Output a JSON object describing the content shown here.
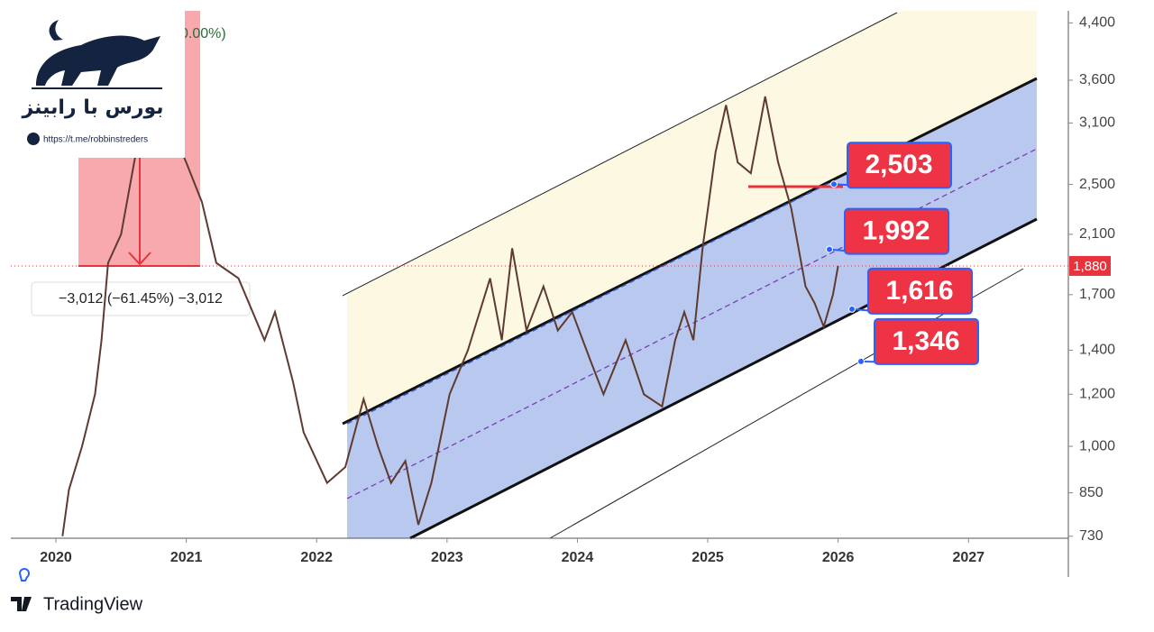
{
  "chart_data": {
    "type": "line",
    "x": [
      2020.05,
      2020.1,
      2020.2,
      2020.3,
      2020.35,
      2020.4,
      2020.5,
      2020.6,
      2020.7,
      2020.9,
      2021.0,
      2021.12,
      2021.23,
      2021.4,
      2021.6,
      2021.68,
      2021.82,
      2021.9,
      2022.08,
      2022.22,
      2022.36,
      2022.47,
      2022.57,
      2022.68,
      2022.78,
      2022.88,
      2023.02,
      2023.16,
      2023.33,
      2023.42,
      2023.5,
      2023.61,
      2023.74,
      2023.85,
      2023.96,
      2024.1,
      2024.2,
      2024.37,
      2024.51,
      2024.65,
      2024.75,
      2024.82,
      2024.89,
      2024.96,
      2025.06,
      2025.14,
      2025.23,
      2025.33,
      2025.44,
      2025.54,
      2025.64,
      2025.75,
      2025.82,
      2025.89,
      2025.96,
      2026.0
    ],
    "values": [
      730,
      860,
      1000,
      1200,
      1450,
      1900,
      2100,
      2700,
      3400,
      3000,
      2700,
      2350,
      1900,
      1800,
      1450,
      1600,
      1250,
      1050,
      880,
      930,
      1180,
      1000,
      880,
      950,
      760,
      880,
      1200,
      1400,
      1800,
      1450,
      2000,
      1500,
      1750,
      1500,
      1600,
      1350,
      1200,
      1450,
      1200,
      1150,
      1450,
      1600,
      1450,
      2000,
      2800,
      3300,
      2700,
      2600,
      3400,
      2700,
      2300,
      1750,
      1650,
      1520,
      1700,
      1880
    ],
    "color": "#5e3a30",
    "log_scale": true,
    "xlim": [
      2019.654,
      2027.766
    ],
    "xticks": [
      2020,
      2021,
      2022,
      2023,
      2024,
      2025,
      2026,
      2027
    ],
    "ylim": [
      725,
      4590
    ],
    "yticks": [
      {
        "value": 4400,
        "label": "4,400"
      },
      {
        "value": 3600,
        "label": "3,600"
      },
      {
        "value": 3100,
        "label": "3,100"
      },
      {
        "value": 2500,
        "label": "2,500"
      },
      {
        "value": 2100,
        "label": "2,100"
      },
      {
        "value": 1700,
        "label": "1,700"
      },
      {
        "value": 1400,
        "label": "1,400"
      },
      {
        "value": 1200,
        "label": "1,200"
      },
      {
        "value": 1000,
        "label": "1,000"
      },
      850,
      730
    ],
    "last_price": {
      "value": 1880,
      "label": "1,880"
    },
    "levels": {
      "values": [
        2503,
        1992,
        1616,
        1346
      ],
      "value_labels": [
        "2,503",
        "1,992",
        "1,616",
        "1,346"
      ],
      "color": "#ee3344"
    },
    "measure_label": "−3,012 (−61.45%) −3,012",
    "measure_top_label": "0.00%)"
  },
  "logo": {
    "title": "بورس با رابینز",
    "link": "https://t.me/robbinstreders"
  },
  "footer": {
    "brand": "TradingView"
  }
}
